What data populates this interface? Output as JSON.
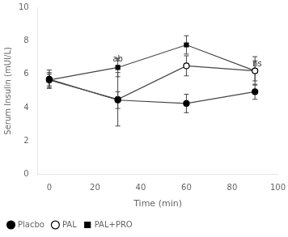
{
  "chart_data": {
    "type": "line",
    "x": [
      0,
      30,
      60,
      90
    ],
    "series": [
      {
        "name": "Placbo",
        "color": "#444444",
        "marker": "circle",
        "values": [
          5.7,
          4.45,
          4.25,
          4.95
        ],
        "errors": [
          0.55,
          0.5,
          0.55,
          0.45
        ]
      },
      {
        "name": "PAL",
        "color": "#444444",
        "marker": "circle_open",
        "values": [
          5.65,
          4.5,
          6.5,
          6.2
        ],
        "errors": [
          0.45,
          1.6,
          0.6,
          0.85
        ]
      },
      {
        "name": "PAL+PRO",
        "color": "#444444",
        "marker": "square",
        "values": [
          5.65,
          6.4,
          7.75,
          6.2
        ],
        "errors": [
          0.35,
          0.55,
          0.55,
          0.6
        ]
      }
    ],
    "annotations": [
      {
        "text": "ab",
        "x": 30,
        "y": 6.65
      },
      {
        "text": "ns",
        "x": 91,
        "y": 6.35
      }
    ],
    "xlabel": "Time (min)",
    "ylabel": "Serum Insulin (mUI/L)",
    "xlim": [
      -5,
      100
    ],
    "ylim": [
      0,
      10
    ],
    "xticks": [
      0,
      20,
      40,
      60,
      80,
      100
    ],
    "yticks": [
      0,
      2,
      4,
      6,
      8,
      10
    ],
    "grid": false,
    "legend": "lower left"
  }
}
